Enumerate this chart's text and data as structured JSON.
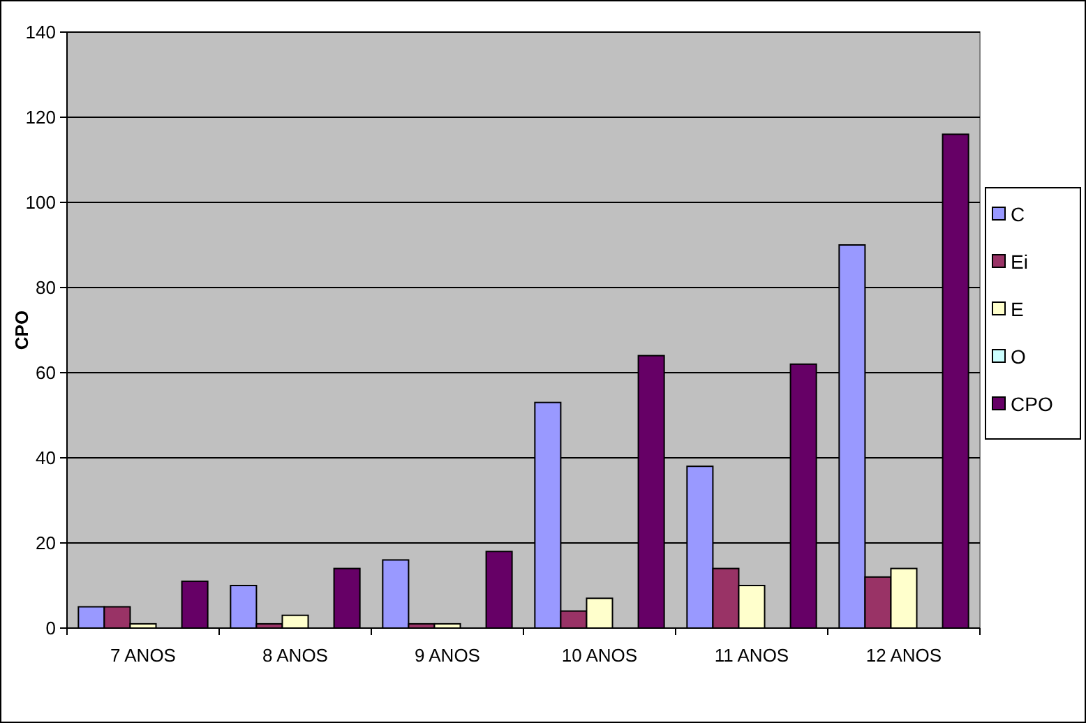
{
  "chart_data": {
    "type": "bar",
    "ylabel": "CPO",
    "categories": [
      "7 ANOS",
      "8 ANOS",
      "9 ANOS",
      "10 ANOS",
      "11 ANOS",
      "12 ANOS"
    ],
    "series": [
      {
        "name": "C",
        "color": "#9999ff",
        "values": [
          5,
          10,
          16,
          53,
          38,
          90
        ]
      },
      {
        "name": "Ei",
        "color": "#993366",
        "values": [
          5,
          1,
          1,
          4,
          14,
          12
        ]
      },
      {
        "name": "E",
        "color": "#ffffcc",
        "values": [
          1,
          3,
          1,
          7,
          10,
          14
        ]
      },
      {
        "name": "O",
        "color": "#ccffff",
        "values": [
          0,
          0,
          0,
          0,
          0,
          0
        ]
      },
      {
        "name": "CPO",
        "color": "#660066",
        "values": [
          11,
          14,
          18,
          64,
          62,
          116
        ]
      }
    ],
    "ylim": [
      0,
      140
    ],
    "yticks": [
      0,
      20,
      40,
      60,
      80,
      100,
      120,
      140
    ],
    "grid": "y",
    "legend": "right"
  }
}
